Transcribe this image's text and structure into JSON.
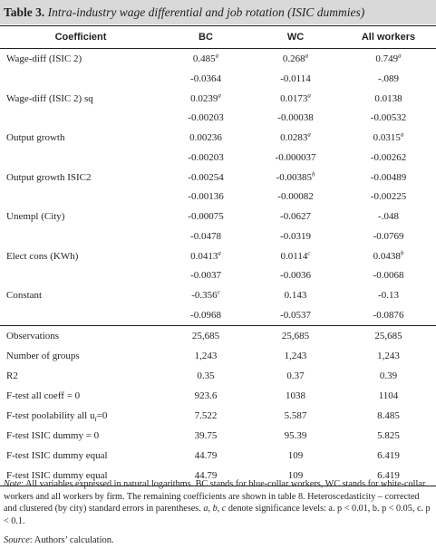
{
  "title": {
    "number": "Table 3.",
    "text": "Intra-industry wage differential and job rotation (ISIC dummies)"
  },
  "columns": [
    "Coefficient",
    "BC",
    "WC",
    "All workers"
  ],
  "coefficients": [
    {
      "label": "Wage-diff (ISIC 2)",
      "values": [
        {
          "v": "0.485",
          "sig": "a"
        },
        {
          "v": "0.268",
          "sig": "a"
        },
        {
          "v": "0.749",
          "sig": "a"
        }
      ],
      "se": [
        "-0.0364",
        "-0.0114",
        "-.089"
      ]
    },
    {
      "label": "Wage-diff (ISIC 2) sq",
      "values": [
        {
          "v": "0.0239",
          "sig": "a"
        },
        {
          "v": "0.0173",
          "sig": "a"
        },
        {
          "v": "0.0138",
          "sig": ""
        }
      ],
      "se": [
        "-0.00203",
        "-0.00038",
        "-0.00532"
      ]
    },
    {
      "label": "Output growth",
      "values": [
        {
          "v": "0.00236",
          "sig": ""
        },
        {
          "v": "0.0283",
          "sig": "a"
        },
        {
          "v": "0.0315",
          "sig": "a"
        }
      ],
      "se": [
        "-0.00203",
        "-0.000037",
        "-0.00262"
      ]
    },
    {
      "label": "Output growth ISIC2",
      "values": [
        {
          "v": "-0.00254",
          "sig": ""
        },
        {
          "v": "-0.00385",
          "sig": "b"
        },
        {
          "v": "-0.00489",
          "sig": ""
        }
      ],
      "se": [
        "-0.00136",
        "-0.00082",
        "-0.00225"
      ]
    },
    {
      "label": "Unempl (City)",
      "values": [
        {
          "v": "-0.00075",
          "sig": ""
        },
        {
          "v": "-0.0627",
          "sig": ""
        },
        {
          "v": "-.048",
          "sig": ""
        }
      ],
      "se": [
        "-0.0478",
        "-0.0319",
        "-0.0769"
      ]
    },
    {
      "label": "Elect cons (KWh)",
      "values": [
        {
          "v": "0.0413",
          "sig": "a"
        },
        {
          "v": "0.0114",
          "sig": "c"
        },
        {
          "v": "0.0438",
          "sig": "b"
        }
      ],
      "se": [
        "-0.0037",
        "-0.0036",
        "-0.0068"
      ]
    },
    {
      "label": "Constant",
      "values": [
        {
          "v": "-0.356",
          "sig": "c"
        },
        {
          "v": "0.143",
          "sig": ""
        },
        {
          "v": "-0.13",
          "sig": ""
        }
      ],
      "se": [
        "-0.0968",
        "-0.0537",
        "-0.0876"
      ]
    }
  ],
  "stats": [
    {
      "label": "Observations",
      "values": [
        "25,685",
        "25,685",
        "25,685"
      ]
    },
    {
      "label": "Number of groups",
      "values": [
        "1,243",
        "1,243",
        "1,243"
      ]
    },
    {
      "label": "R2",
      "values": [
        "0.35",
        "0.37",
        "0.39"
      ]
    },
    {
      "label": "F-test all coeff = 0",
      "values": [
        "923.6",
        "1038",
        "1104"
      ]
    },
    {
      "label": "F-test poolability all u",
      "label_sub": "i",
      "label_after": "=0",
      "values": [
        "7.522",
        "5.587",
        "8.485"
      ]
    },
    {
      "label": "F-test ISIC dummy = 0",
      "values": [
        "39.75",
        "95.39",
        "5.825"
      ]
    },
    {
      "label": "F-test ISIC dummy equal",
      "values": [
        "44.79",
        "109",
        "6.419"
      ]
    },
    {
      "label": "F-test ISIC dummy equal",
      "values": [
        "44.79",
        "109",
        "6.419"
      ]
    }
  ],
  "note": {
    "lead": "Note",
    "text_1": ": All variables expressed in natural logarithms. BC stands for blue-collar workers, WC stands for white-collar workers and all workers by firm. The remaining coefficients are shown in table 8. Heteroscedasticity – corrected and clustered (by city) standard errors in parentheses. ",
    "sig_letters": "a, b, c",
    "text_2": " denote significance levels: a. p < 0.01, b. p < 0.05, c. p < 0.1."
  },
  "source": {
    "lead": "Source",
    "text": ": Authors’ calculation."
  }
}
